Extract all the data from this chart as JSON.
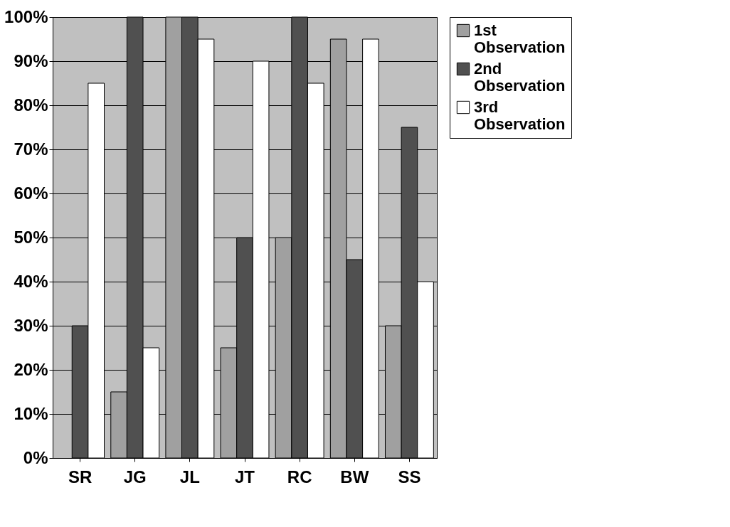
{
  "chart_data": {
    "type": "bar",
    "categories": [
      "SR",
      "JG",
      "JL",
      "JT",
      "RC",
      "BW",
      "SS"
    ],
    "series": [
      {
        "name": "1st Observation",
        "color": "#a0a0a0",
        "values": [
          null,
          15,
          100,
          25,
          50,
          95,
          30
        ]
      },
      {
        "name": "2nd Observation",
        "color": "#505050",
        "values": [
          30,
          100,
          100,
          50,
          100,
          45,
          75
        ]
      },
      {
        "name": "3rd Observation",
        "color": "#ffffff",
        "values": [
          85,
          25,
          95,
          90,
          85,
          95,
          40
        ]
      }
    ],
    "ylim": [
      0,
      100
    ],
    "yticks": [
      {
        "value": 0,
        "label": "0%"
      },
      {
        "value": 10,
        "label": "10%"
      },
      {
        "value": 20,
        "label": "20%"
      },
      {
        "value": 30,
        "label": "30%"
      },
      {
        "value": 40,
        "label": "40%"
      },
      {
        "value": 50,
        "label": "50%"
      },
      {
        "value": 60,
        "label": "60%"
      },
      {
        "value": 70,
        "label": "70%"
      },
      {
        "value": 80,
        "label": "80%"
      },
      {
        "value": 90,
        "label": "90%"
      },
      {
        "value": 100,
        "label": "100%"
      }
    ],
    "grid": "y",
    "legend": "right"
  }
}
